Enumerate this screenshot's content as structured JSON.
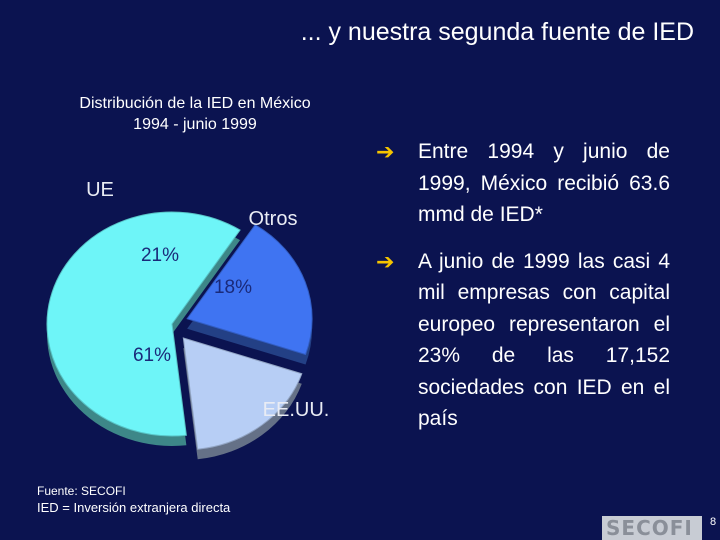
{
  "slide": {
    "title": "... y nuestra segunda fuente de IED",
    "page_number": "8"
  },
  "chart_data": {
    "type": "pie",
    "title": "Distribución de la IED en México",
    "subtitle": "1994 - junio 1999",
    "categories": [
      "UE",
      "Otros",
      "EE.UU."
    ],
    "values": [
      21,
      18,
      61
    ],
    "value_labels": [
      "21%",
      "18%",
      "61%"
    ],
    "colors": [
      "#3f74f2",
      "#b7cef5",
      "#6ef5f8"
    ]
  },
  "bullets": [
    "Entre 1994 y junio de 1999, México recibió 63.6 mmd de IED*",
    "A junio de 1999 las casi 4 mil empresas con capital europeo representaron el 23% de las 17,152 sociedades con IED en el país"
  ],
  "bullet_icon": "arrow-right-icon",
  "footer": {
    "source": "Fuente: SECOFI",
    "definition": "IED = Inversión extranjera directa",
    "logo_text": "SECOFI"
  }
}
